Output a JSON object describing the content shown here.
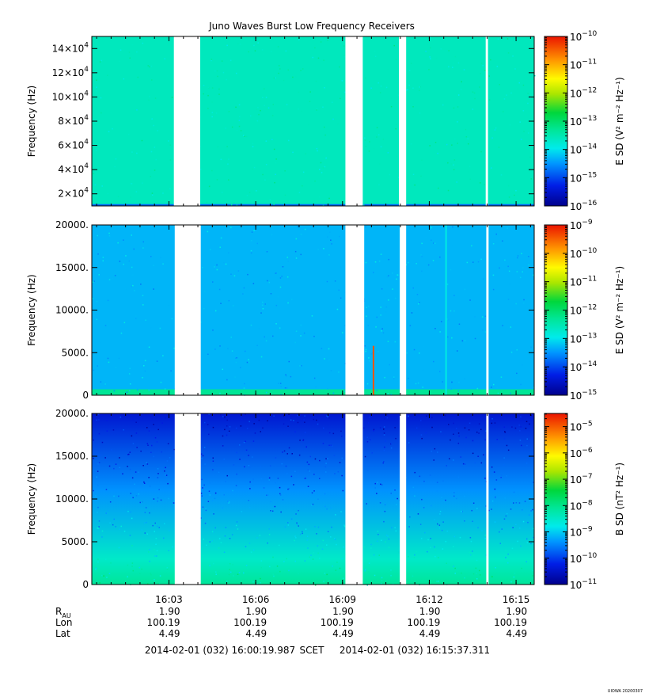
{
  "title": "Juno Waves Burst Low Frequency Receivers",
  "time_axis": {
    "ticks": [
      "16:03",
      "16:06",
      "16:09",
      "16:12",
      "16:15"
    ],
    "tick_minutes": [
      3.0,
      6.0,
      9.0,
      12.0,
      15.0
    ],
    "range_minutes_after_16_00": [
      0.333,
      15.627
    ]
  },
  "ephemeris": {
    "rows": [
      {
        "label": "R",
        "sub": "AU",
        "values": [
          "1.90",
          "1.90",
          "1.90",
          "1.90",
          "1.90"
        ]
      },
      {
        "label": "Lon",
        "sub": "",
        "values": [
          "100.19",
          "100.19",
          "100.19",
          "100.19",
          "100.19"
        ]
      },
      {
        "label": "Lat",
        "sub": "",
        "values": [
          "4.49",
          "4.49",
          "4.49",
          "4.49",
          "4.49"
        ]
      }
    ]
  },
  "footer": {
    "start": "2014-02-01 (032) 16:00:19.987",
    "mid": "SCET",
    "end": "2014-02-01 (032) 16:15:37.311"
  },
  "stamp": "UIOWA 20200307",
  "chart_data": [
    {
      "type": "heatmap",
      "name": "panel-top",
      "ylabel": "Frequency (Hz)",
      "ylim": [
        10000,
        150000
      ],
      "y_ticks": [
        {
          "v": 20000,
          "mant": "2",
          "exp": "4"
        },
        {
          "v": 40000,
          "mant": "4",
          "exp": "4"
        },
        {
          "v": 60000,
          "mant": "6",
          "exp": "4"
        },
        {
          "v": 80000,
          "mant": "8",
          "exp": "4"
        },
        {
          "v": 100000,
          "mant": "10",
          "exp": "4"
        },
        {
          "v": 120000,
          "mant": "12",
          "exp": "4"
        },
        {
          "v": 140000,
          "mant": "14",
          "exp": "4"
        }
      ],
      "colorbar": {
        "label": "E SD (V² m⁻² Hz⁻¹)",
        "log_min": -16,
        "log_max": -10
      },
      "background_level": -13.6,
      "low_band": {
        "level": -14.8,
        "max_freq": 11500
      },
      "data_gaps_minutes": [
        [
          3.17,
          4.08
        ],
        [
          9.1,
          9.7
        ],
        [
          10.95,
          11.2
        ],
        [
          13.95,
          14.03
        ]
      ],
      "spikes": []
    },
    {
      "type": "heatmap",
      "name": "panel-middle",
      "ylabel": "Frequency (Hz)",
      "ylim": [
        0,
        20000
      ],
      "y_ticks": [
        {
          "v": 0,
          "text": "0"
        },
        {
          "v": 5000,
          "text": "5000."
        },
        {
          "v": 10000,
          "text": "10000."
        },
        {
          "v": 15000,
          "text": "15000."
        },
        {
          "v": 20000,
          "text": "20000."
        }
      ],
      "colorbar": {
        "label": "E SD (V² m⁻² Hz⁻¹)",
        "log_min": -15,
        "log_max": -9
      },
      "background_level": -13.3,
      "low_band": {
        "level": -12.3,
        "max_freq": 700
      },
      "data_gaps_minutes": [
        [
          3.2,
          4.1
        ],
        [
          9.1,
          9.75
        ],
        [
          10.98,
          11.2
        ],
        [
          13.97,
          14.05
        ]
      ],
      "spikes": [
        {
          "minute": 10.07,
          "max_freq": 5800,
          "level": -9.4
        },
        {
          "minute": 12.58,
          "max_freq": 20000,
          "level": -12.9
        }
      ]
    },
    {
      "type": "heatmap",
      "name": "panel-bottom",
      "ylabel": "Frequency (Hz)",
      "ylim": [
        0,
        20000
      ],
      "y_ticks": [
        {
          "v": 0,
          "text": "0"
        },
        {
          "v": 5000,
          "text": "5000."
        },
        {
          "v": 10000,
          "text": "10000."
        },
        {
          "v": 15000,
          "text": "15000."
        },
        {
          "v": 20000,
          "text": "20000."
        }
      ],
      "colorbar": {
        "label": "B SD (nT² Hz⁻¹)",
        "log_min": -11,
        "log_max": -4.5
      },
      "background_level": -10.4,
      "gradient": {
        "top": -10.4,
        "mid": -9.4,
        "low": -8.5,
        "bottom": -8.1
      },
      "data_gaps_minutes": [
        [
          3.2,
          4.1
        ],
        [
          9.1,
          9.7
        ],
        [
          10.98,
          11.2
        ],
        [
          13.97,
          14.05
        ]
      ],
      "spikes": []
    }
  ]
}
